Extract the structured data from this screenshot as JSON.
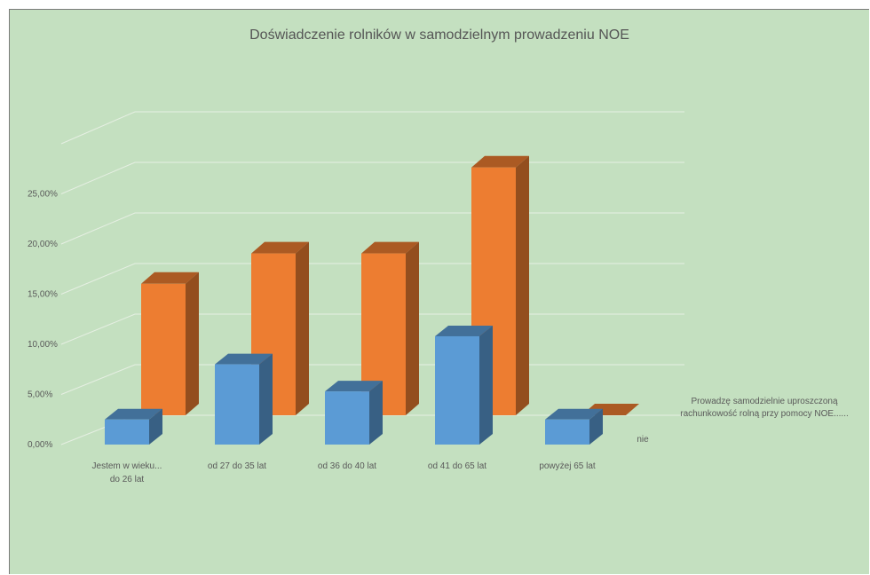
{
  "chart_data": {
    "type": "bar",
    "title": "Doświadczenie rolników w samodzielnym prowadzeniu NOE",
    "categories": [
      "Jestem w wieku... do 26 lat",
      "od 27 do 35 lat",
      "od 36 do 40 lat",
      "od 41 do 65 lat",
      "powyżej 65 lat"
    ],
    "category_lines": [
      [
        "Jestem w wieku...",
        "do 26 lat"
      ],
      [
        "od 27 do 35 lat"
      ],
      [
        "od 36 do 40 lat"
      ],
      [
        "od 41 do 65 lat"
      ],
      [
        "powyżej 65 lat"
      ]
    ],
    "series": [
      {
        "name": "nie",
        "values": [
          2.5,
          8.0,
          5.3,
          10.8,
          2.5
        ],
        "color": "#5b9bd5"
      },
      {
        "name": "Prowadzę samodzielnie uproszczoną rachunkowość rolną przy pomocy NOE......",
        "values": [
          13.0,
          16.0,
          16.0,
          24.5,
          0.0
        ],
        "color": "#ed7d31"
      }
    ],
    "depth_labels": [
      "nie",
      [
        "Prowadzę samodzielnie uproszczoną",
        "rachunkowość rolną przy pomocy NOE......"
      ]
    ],
    "yticks": [
      "0,00%",
      "5,00%",
      "10,00%",
      "15,00%",
      "20,00%",
      "25,00%"
    ],
    "ylim": [
      0,
      25
    ],
    "grid": true
  }
}
